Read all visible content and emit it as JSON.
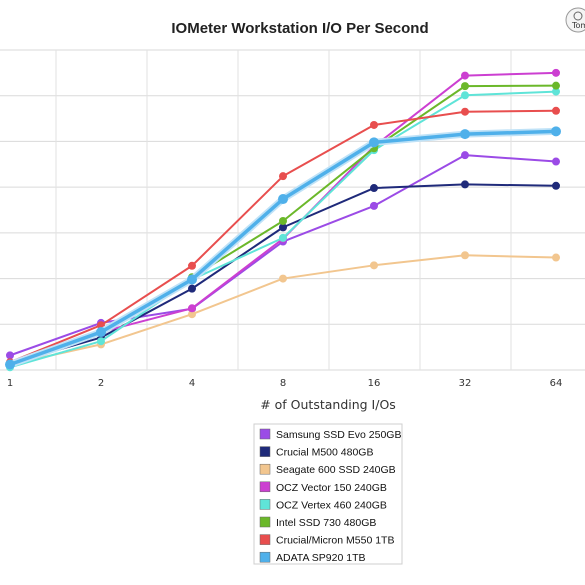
{
  "chart_data": {
    "type": "line",
    "title": "IOMeter Workstation I/O Per Second",
    "xlabel": "# of Outstanding I/Os",
    "ylabel": "",
    "categories": [
      "1",
      "2",
      "4",
      "8",
      "16",
      "32",
      "64"
    ],
    "ylim": [
      0,
      7
    ],
    "grid": true,
    "legend_position": "bottom",
    "series": [
      {
        "name": "Samsung SSD Evo 250GB",
        "color": "#9b4be6",
        "values": [
          0.32,
          1.03,
          1.34,
          2.81,
          3.59,
          4.7,
          4.56
        ]
      },
      {
        "name": "Crucial M500 480GB",
        "color": "#1f2a7a",
        "values": [
          0.14,
          0.71,
          1.78,
          3.12,
          3.98,
          4.06,
          4.03
        ]
      },
      {
        "name": "Seagate 600 SSD 240GB",
        "color": "#f2c68f",
        "values": [
          0.12,
          0.56,
          1.22,
          2.0,
          2.29,
          2.51,
          2.46
        ]
      },
      {
        "name": "OCZ Vector 150 240GB",
        "color": "#cc3fd1",
        "values": [
          0.12,
          0.83,
          1.35,
          2.87,
          4.89,
          6.44,
          6.5
        ]
      },
      {
        "name": "OCZ Vertex 460 240GB",
        "color": "#5fe4d8",
        "values": [
          0.06,
          0.63,
          1.98,
          2.89,
          4.81,
          6.01,
          6.09
        ]
      },
      {
        "name": "Intel SSD 730 480GB",
        "color": "#6bb82a",
        "values": [
          0.14,
          0.84,
          2.03,
          3.26,
          4.85,
          6.21,
          6.22
        ]
      },
      {
        "name": "Crucial/Micron M550 1TB",
        "color": "#e84e4e",
        "values": [
          0.17,
          0.98,
          2.28,
          4.24,
          5.36,
          5.65,
          5.67
        ]
      },
      {
        "name": "ADATA SP920 1TB",
        "color": "#4fb0ea",
        "values": [
          0.12,
          0.83,
          1.98,
          3.74,
          4.98,
          5.16,
          5.22
        ]
      }
    ]
  },
  "logo": {
    "text": "Tomsi"
  }
}
